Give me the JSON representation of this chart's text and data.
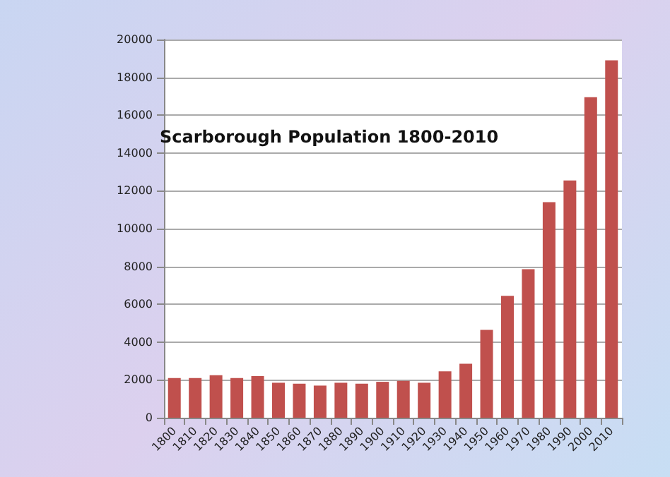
{
  "chart_data": {
    "type": "bar",
    "title": "Scarborough Population 1800-2010",
    "categories": [
      "1800",
      "1810",
      "1820",
      "1830",
      "1840",
      "1850",
      "1860",
      "1870",
      "1880",
      "1890",
      "1900",
      "1910",
      "1920",
      "1930",
      "1940",
      "1950",
      "1960",
      "1970",
      "1980",
      "1990",
      "2000",
      "2010"
    ],
    "values": [
      2100,
      2100,
      2250,
      2100,
      2200,
      1850,
      1800,
      1700,
      1850,
      1800,
      1900,
      1950,
      1850,
      2450,
      2850,
      4650,
      6450,
      7850,
      11400,
      12550,
      16950,
      18900
    ],
    "color": "#c0504d",
    "ylim": [
      0,
      20000
    ],
    "yticks": [
      0,
      2000,
      4000,
      6000,
      8000,
      10000,
      12000,
      14000,
      16000,
      18000,
      20000
    ],
    "grid": "y"
  }
}
